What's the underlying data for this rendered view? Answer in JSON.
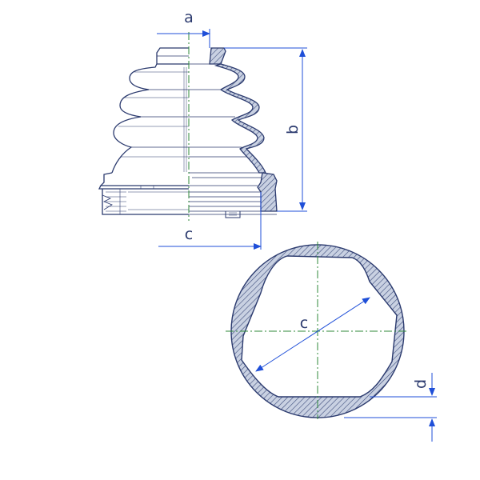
{
  "labels": {
    "a": "a",
    "b": "b",
    "c_side": "c",
    "c_section": "c",
    "d": "d"
  },
  "colors": {
    "outline": "#2b3a6e",
    "dimension": "#1f4fd8",
    "centerline": "#2f8a3a",
    "hatch_fill": "#b9c3d6",
    "background": "#ffffff"
  }
}
